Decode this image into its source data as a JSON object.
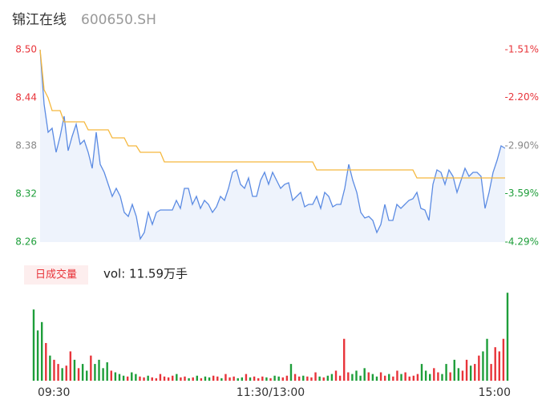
{
  "chart_data": {
    "type": "intraday",
    "title": "锦江在线",
    "code": "600650.SH",
    "xlim": [
      0,
      116
    ],
    "xticks": [
      {
        "value": 0,
        "label": "09:30"
      },
      {
        "value": 58,
        "label": "11:30/13:00"
      },
      {
        "value": 116,
        "label": "15:00"
      }
    ],
    "ylim": [
      8.26,
      8.5
    ],
    "yticks": [
      {
        "value": 8.5,
        "label": "8.50"
      },
      8.44,
      8.38,
      8.32,
      8.26
    ],
    "y2lim": [
      -4.29,
      -1.51
    ],
    "y2ticks": [
      {
        "value": -1.51,
        "label": "-1.51%"
      },
      {
        "value": -2.2,
        "label": "-2.20%"
      },
      {
        "value": -2.9,
        "label": "-2.90%"
      },
      {
        "value": -3.59,
        "label": "-3.59%"
      },
      {
        "value": -4.29,
        "label": "-4.29%"
      }
    ],
    "up_color": "#e8343a",
    "down_color": "#1e9e3a",
    "series": [
      {
        "color": "#5b8be3",
        "values": [
          8.5,
          8.432,
          8.397,
          8.402,
          8.372,
          8.392,
          8.417,
          8.374,
          8.392,
          8.407,
          8.382,
          8.387,
          8.372,
          8.352,
          8.397,
          8.357,
          8.347,
          8.332,
          8.317,
          8.327,
          8.317,
          8.297,
          8.292,
          8.307,
          8.292,
          8.264,
          8.272,
          8.297,
          8.282,
          8.297,
          8.3,
          8.3,
          8.3,
          8.3,
          8.312,
          8.302,
          8.327,
          8.327,
          8.307,
          8.317,
          8.302,
          8.312,
          8.307,
          8.297,
          8.304,
          8.317,
          8.312,
          8.327,
          8.347,
          8.35,
          8.332,
          8.327,
          8.34,
          8.317,
          8.317,
          8.337,
          8.347,
          8.332,
          8.347,
          8.337,
          8.327,
          8.332,
          8.334,
          8.312,
          8.317,
          8.322,
          8.304,
          8.307,
          8.307,
          8.317,
          8.302,
          8.322,
          8.317,
          8.304,
          8.307,
          8.307,
          8.327,
          8.357,
          8.337,
          8.322,
          8.297,
          8.29,
          8.292,
          8.287,
          8.272,
          8.282,
          8.307,
          8.287,
          8.287,
          8.307,
          8.302,
          8.307,
          8.312,
          8.314,
          8.322,
          8.302,
          8.3,
          8.287,
          8.332,
          8.35,
          8.347,
          8.332,
          8.35,
          8.342,
          8.322,
          8.337,
          8.352,
          8.342,
          8.347,
          8.347,
          8.342,
          8.302,
          8.322,
          8.347,
          8.362,
          8.38,
          8.377
        ]
      },
      {
        "color": "#f5b83d",
        "values": [
          8.5,
          8.45,
          8.44,
          8.424,
          8.424,
          8.424,
          8.41,
          8.41,
          8.41,
          8.41,
          8.41,
          8.41,
          8.4,
          8.4,
          8.4,
          8.4,
          8.4,
          8.4,
          8.39,
          8.39,
          8.39,
          8.39,
          8.38,
          8.38,
          8.38,
          8.372,
          8.372,
          8.372,
          8.372,
          8.372,
          8.372,
          8.36,
          8.36,
          8.36,
          8.36,
          8.36,
          8.36,
          8.36,
          8.36,
          8.36,
          8.36,
          8.36,
          8.36,
          8.36,
          8.36,
          8.36,
          8.36,
          8.36,
          8.36,
          8.36,
          8.36,
          8.36,
          8.36,
          8.36,
          8.36,
          8.36,
          8.36,
          8.36,
          8.36,
          8.36,
          8.36,
          8.36,
          8.36,
          8.36,
          8.36,
          8.36,
          8.36,
          8.36,
          8.36,
          8.35,
          8.35,
          8.35,
          8.35,
          8.35,
          8.35,
          8.35,
          8.35,
          8.35,
          8.35,
          8.35,
          8.35,
          8.35,
          8.35,
          8.35,
          8.35,
          8.35,
          8.35,
          8.35,
          8.35,
          8.35,
          8.35,
          8.35,
          8.35,
          8.35,
          8.34,
          8.34,
          8.34,
          8.34,
          8.34,
          8.34,
          8.34,
          8.34,
          8.34,
          8.34,
          8.34,
          8.34,
          8.34,
          8.34,
          8.34,
          8.34,
          8.34,
          8.34,
          8.34,
          8.34,
          8.34,
          8.34,
          8.34
        ]
      }
    ],
    "volume_label": "日成交量",
    "volume_text": "vol: 11.59万手",
    "vlim": [
      0,
      110
    ],
    "volume": [
      85,
      60,
      70,
      45,
      30,
      25,
      20,
      15,
      18,
      35,
      25,
      15,
      20,
      12,
      30,
      20,
      25,
      15,
      22,
      12,
      10,
      8,
      6,
      5,
      10,
      8,
      5,
      4,
      6,
      4,
      3,
      8,
      5,
      4,
      6,
      8,
      4,
      5,
      3,
      4,
      6,
      3,
      5,
      4,
      6,
      5,
      3,
      8,
      4,
      5,
      3,
      4,
      8,
      4,
      5,
      3,
      5,
      4,
      3,
      6,
      5,
      4,
      6,
      20,
      8,
      5,
      6,
      5,
      4,
      10,
      5,
      4,
      6,
      8,
      12,
      6,
      50,
      10,
      8,
      12,
      6,
      15,
      10,
      8,
      5,
      10,
      6,
      8,
      5,
      12,
      8,
      10,
      5,
      6,
      8,
      20,
      12,
      8,
      15,
      10,
      8,
      20,
      10,
      25,
      15,
      12,
      25,
      18,
      20,
      30,
      35,
      50,
      20,
      40,
      35,
      50,
      105
    ]
  }
}
